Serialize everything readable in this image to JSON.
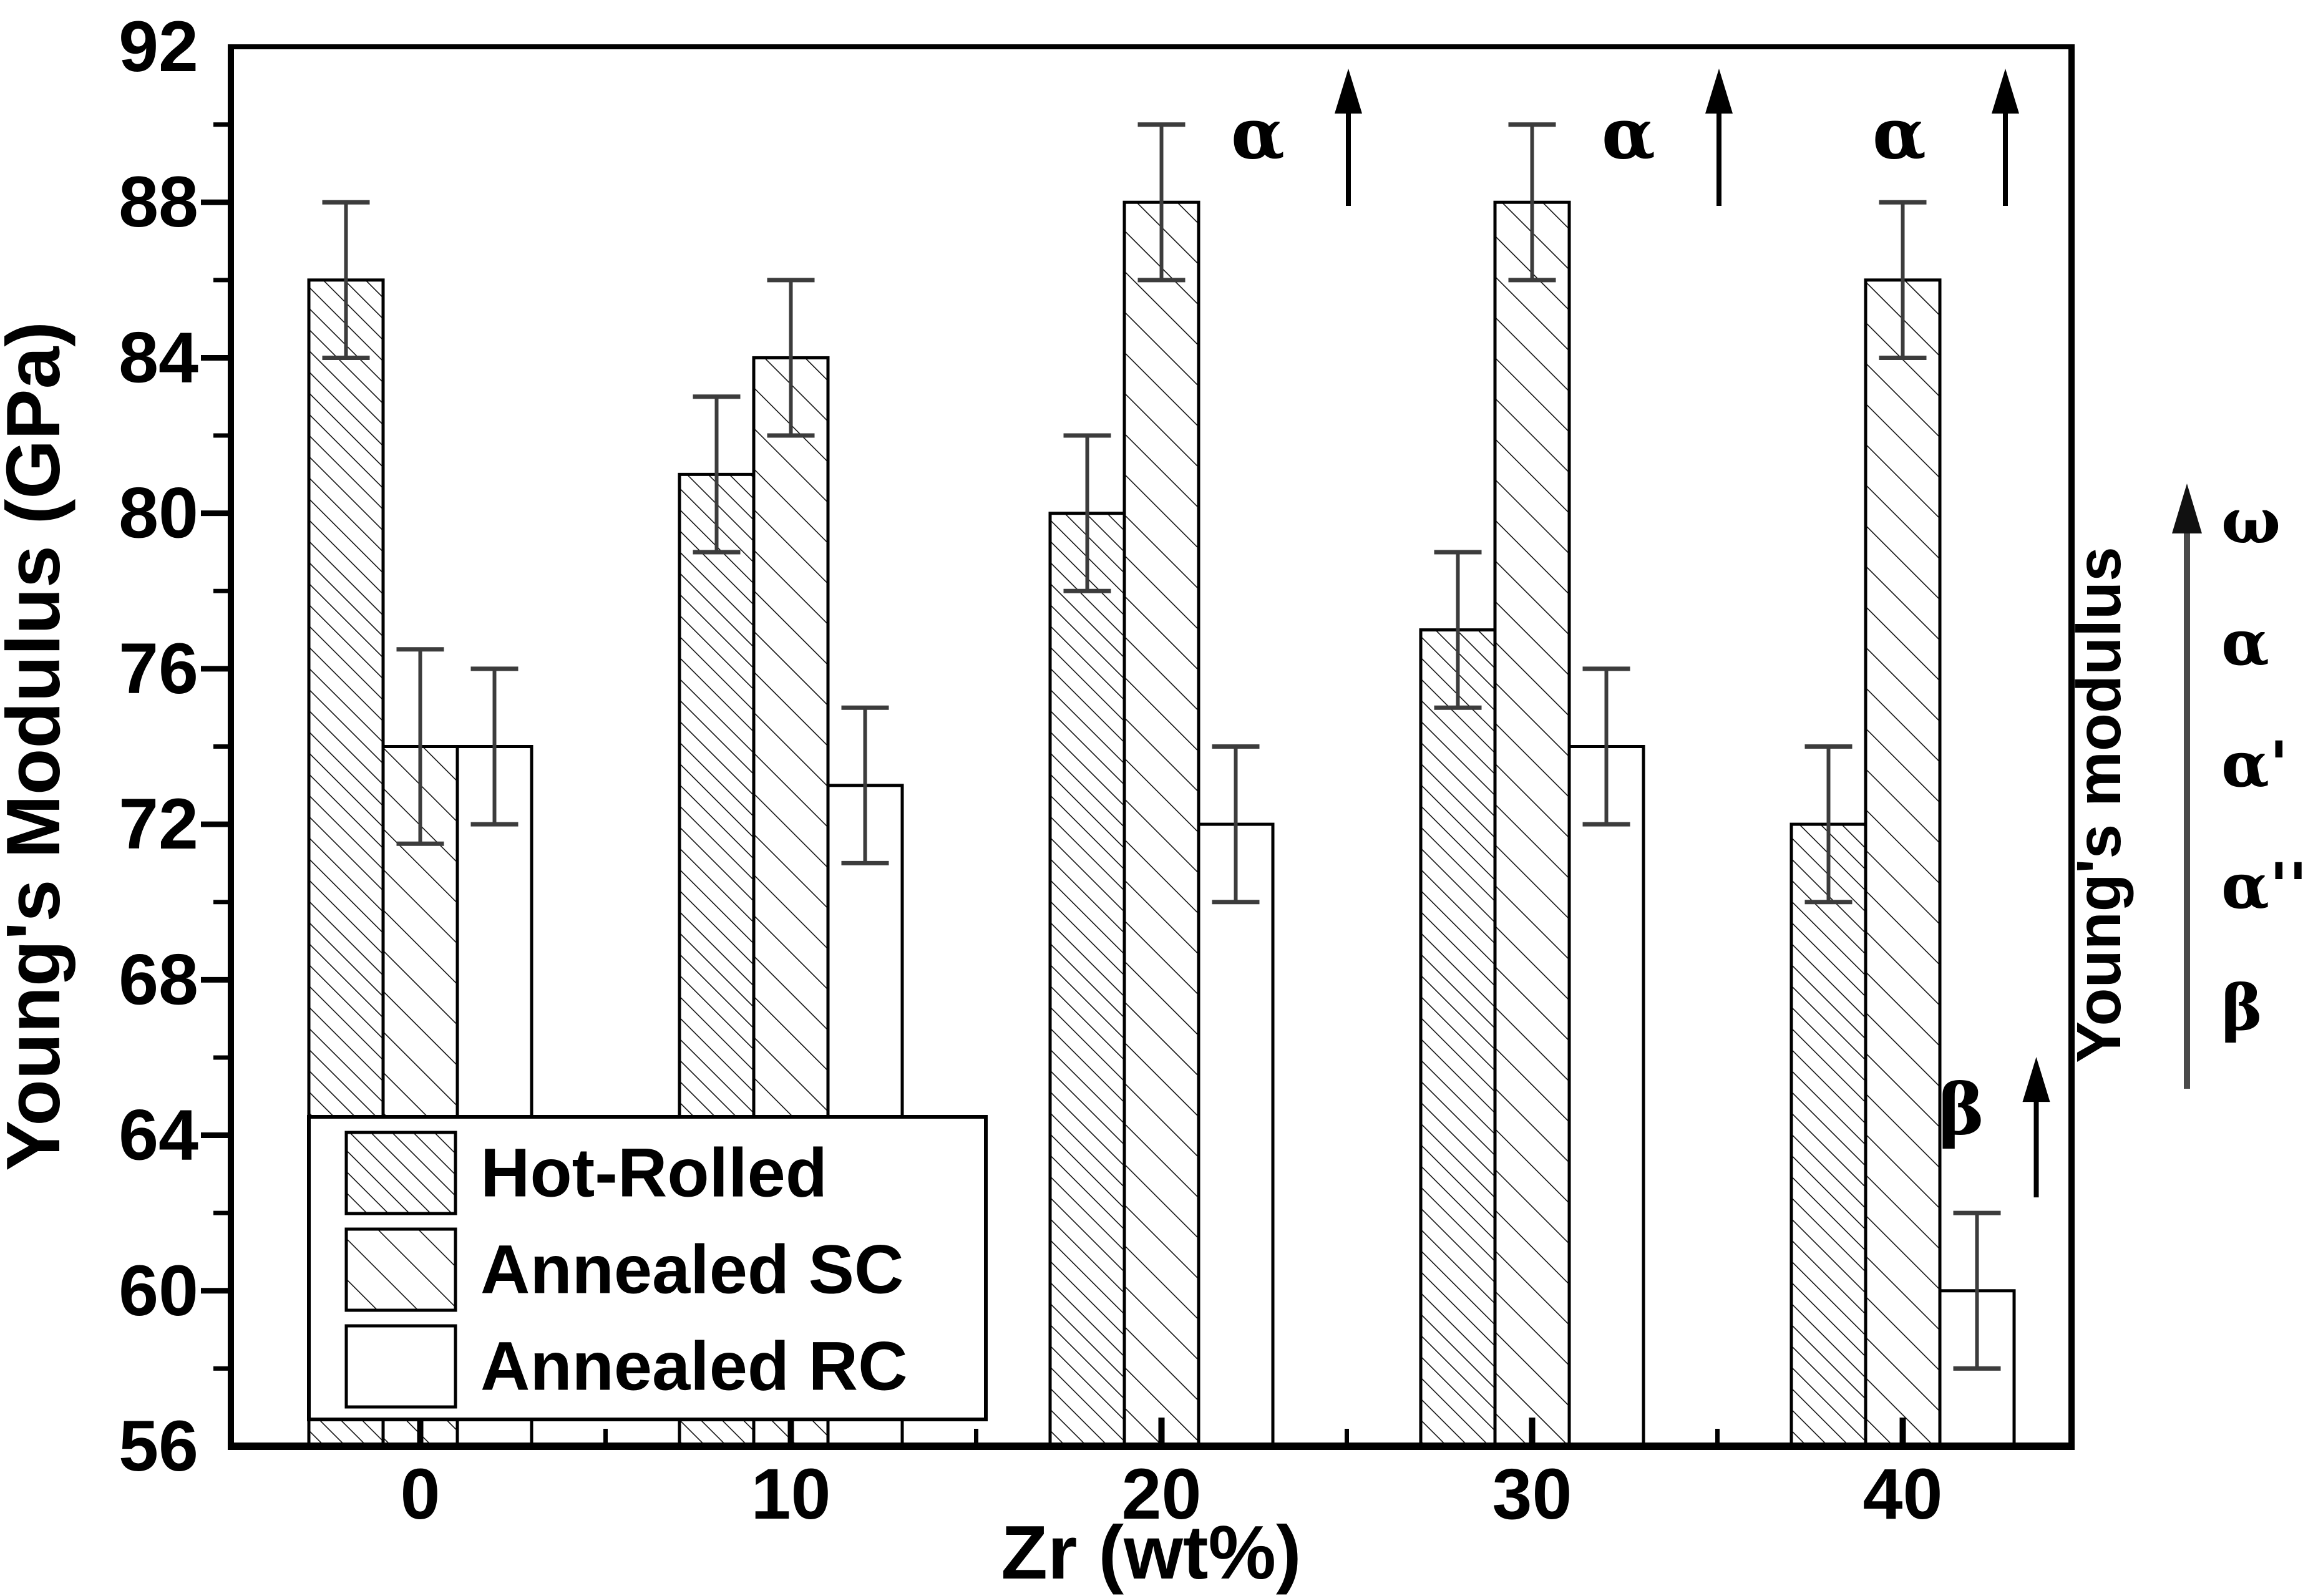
{
  "chart_data": {
    "type": "bar",
    "title": "",
    "xlabel": "Zr (wt%)",
    "ylabel": "Young's Modulus (GPa)",
    "ylim": [
      56,
      92
    ],
    "ytick_major_step": 4,
    "ytick_minor_step": 2,
    "grid": false,
    "legend_position": "lower-left",
    "categories": [
      "0",
      "10",
      "20",
      "30",
      "40"
    ],
    "series": [
      {
        "name": "Hot-Rolled",
        "hatch": "dense-diagonal",
        "values": [
          86,
          81,
          80,
          77,
          72
        ],
        "errors": [
          2,
          2,
          2,
          2,
          2
        ]
      },
      {
        "name": "Annealed SC",
        "hatch": "sparse-diagonal",
        "values": [
          74,
          84,
          88,
          88,
          86
        ],
        "errors": [
          2.5,
          2,
          2,
          2,
          2
        ]
      },
      {
        "name": "Annealed RC",
        "hatch": "none",
        "values": [
          74,
          73,
          72,
          74,
          60
        ],
        "errors": [
          2,
          2,
          2,
          2,
          2
        ]
      }
    ],
    "annotations": [
      {
        "text": "α",
        "arrow": "up",
        "category": "20",
        "series": "Annealed SC"
      },
      {
        "text": "α",
        "arrow": "up",
        "category": "30",
        "series": "Annealed SC"
      },
      {
        "text": "α",
        "arrow": "up",
        "category": "40",
        "series": "Annealed SC"
      },
      {
        "text": "β",
        "arrow": "up",
        "category": "40",
        "series": "Annealed RC"
      }
    ]
  },
  "right_panel": {
    "label": "Young's modulus",
    "arrow_direction": "up",
    "phases": [
      "ω",
      "α",
      "α'",
      "α''",
      "β"
    ]
  },
  "colors": {
    "foreground": "#000000",
    "error_bar": "#3c3c3c",
    "panel_arrow": "#4a4a4a",
    "background": "#ffffff"
  }
}
